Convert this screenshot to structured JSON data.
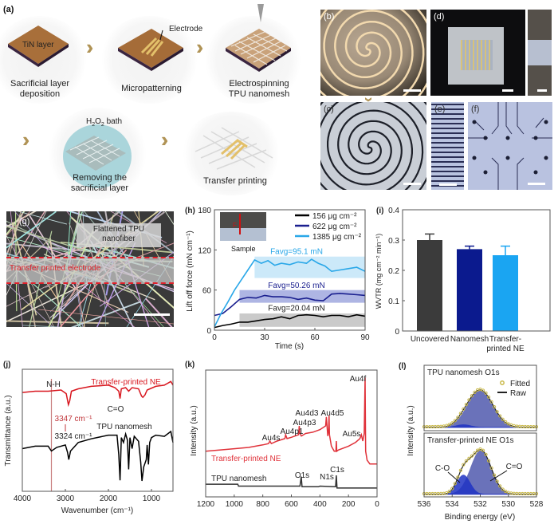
{
  "panel_a": {
    "label": "(a)",
    "steps": [
      {
        "caption_1": "Sacrificial layer",
        "caption_2": "deposition",
        "inner": "TiN layer"
      },
      {
        "caption_1": "Micropatterning",
        "inner": "Electrode"
      },
      {
        "caption_1": "Electrospinning",
        "caption_2": "TPU nanomesh"
      },
      {
        "caption_1": "Removing the",
        "caption_2": "sacrificial layer",
        "inner": "H2O2 bath"
      },
      {
        "caption_1": "Transfer printing"
      }
    ],
    "arrow_icon": "double-chevron-right",
    "colors": {
      "tin": "#a86f3a",
      "gold": "#e3c06a",
      "arrow": "#b09355",
      "bath": "#9ccfd6"
    }
  },
  "photos": {
    "b": "(b)",
    "c": "(c)",
    "d": "(d)",
    "e": "(e)",
    "f": "(f)"
  },
  "panel_g": {
    "label": "(g)",
    "callout": "Flattened TPU nanofiber",
    "callout_1": "Flattened TPU",
    "callout_2": "nanofiber",
    "band_label": "Transfer printed electrode",
    "band_color": "#e0202a"
  },
  "chart_data": [
    {
      "id": "h",
      "label": "(h)",
      "type": "line",
      "xlabel": "Time (s)",
      "ylabel": "Lift off force (mN cm⁻¹)",
      "xlim": [
        0,
        90
      ],
      "ylim": [
        0,
        180
      ],
      "xticks": [
        0,
        30,
        60,
        90
      ],
      "yticks": [
        0,
        60,
        120,
        180
      ],
      "legend_position": "top-right",
      "inset_label": "Sample",
      "inset_force": "F",
      "series": [
        {
          "name": "156 μg cm⁻²",
          "color": "#000000",
          "band": [
            15,
            90,
            5,
            25
          ],
          "annotation": "Favg=20.04 mN",
          "x": [
            0,
            5,
            10,
            15,
            20,
            25,
            30,
            35,
            40,
            45,
            50,
            55,
            60,
            65,
            70,
            75,
            80,
            85,
            90
          ],
          "y": [
            4,
            7,
            9,
            12,
            12,
            14,
            16,
            17,
            20,
            17,
            22,
            23,
            22,
            20,
            22,
            22,
            20,
            23,
            21
          ]
        },
        {
          "name": "622 μg cm⁻²",
          "color": "#1a1f8f",
          "band": [
            15,
            90,
            41,
            60
          ],
          "annotation": "Favg=50.26 mN",
          "x": [
            0,
            5,
            10,
            15,
            20,
            25,
            30,
            35,
            40,
            45,
            50,
            55,
            60,
            65,
            70,
            75,
            80,
            85,
            90
          ],
          "y": [
            22,
            25,
            35,
            46,
            49,
            48,
            52,
            50,
            50,
            49,
            46,
            48,
            45,
            44,
            54,
            55,
            54,
            53,
            52
          ]
        },
        {
          "name": "1385 μg cm⁻²",
          "color": "#29a7e8",
          "band": [
            24,
            90,
            78,
            110
          ],
          "annotation": "Favg=95.1 mN",
          "x": [
            0,
            4,
            8,
            12,
            16,
            20,
            24,
            28,
            32,
            36,
            40,
            45,
            50,
            55,
            58,
            62,
            66,
            70,
            75,
            80,
            85,
            90
          ],
          "y": [
            5,
            25,
            42,
            60,
            75,
            90,
            105,
            100,
            104,
            97,
            100,
            98,
            102,
            100,
            106,
            100,
            96,
            88,
            90,
            92,
            94,
            88
          ]
        }
      ]
    },
    {
      "id": "i",
      "label": "(i)",
      "type": "bar",
      "ylabel": "WVTR (mg cm⁻² min⁻¹)",
      "ylim": [
        0,
        0.4
      ],
      "yticks": [
        0,
        0.1,
        0.2,
        0.3,
        0.4
      ],
      "categories": [
        "Uncovered",
        "Nanomesh",
        "Transfer-printed NE"
      ],
      "category_lines": [
        [
          "Uncovered"
        ],
        [
          "Nanomesh"
        ],
        [
          "Transfer-",
          "printed NE"
        ]
      ],
      "values": [
        0.3,
        0.27,
        0.25
      ],
      "errors": [
        0.02,
        0.01,
        0.03
      ],
      "colors": [
        "#3b3b3b",
        "#0b1a8e",
        "#1aa5f2"
      ]
    },
    {
      "id": "j",
      "label": "(j)",
      "type": "line",
      "xlabel": "Wavenumber (cm⁻¹)",
      "ylabel": "Transmittance (a.u.)",
      "xlim": [
        4000,
        500
      ],
      "ylim": [
        0,
        10
      ],
      "xticks": [
        4000,
        3000,
        2000,
        1000
      ],
      "marker_line_x": 3324,
      "annotations": [
        "N-H",
        "C=O",
        "3347 cm⁻¹",
        "3324 cm⁻¹"
      ],
      "series": [
        {
          "name": "Transfer-printed NE",
          "color": "#d8161e",
          "x": [
            4000,
            3700,
            3400,
            3100,
            2980,
            2930,
            2900,
            2860,
            2700,
            2400,
            2000,
            1850,
            1760,
            1730,
            1700,
            1600,
            1530,
            1450,
            1300,
            1230,
            1200,
            1150,
            1100,
            900,
            700,
            550,
            500
          ],
          "y": [
            8.1,
            8.2,
            8.2,
            8.3,
            8.0,
            7.1,
            7.4,
            8.2,
            8.4,
            8.6,
            8.7,
            8.5,
            8.2,
            7.6,
            8.4,
            8.5,
            8.2,
            8.5,
            8.4,
            7.8,
            7.7,
            7.9,
            8.3,
            8.6,
            8.7,
            9.0,
            8.7
          ]
        },
        {
          "name": "TPU nanomesh",
          "color": "#000000",
          "x": [
            4000,
            3700,
            3400,
            3324,
            3200,
            3000,
            2950,
            2920,
            2880,
            2700,
            2400,
            2000,
            1800,
            1760,
            1730,
            1700,
            1650,
            1600,
            1560,
            1530,
            1500,
            1450,
            1400,
            1300,
            1250,
            1220,
            1180,
            1120,
            1100,
            1070,
            1040,
            1000,
            900,
            700,
            550,
            500
          ],
          "y": [
            3.5,
            3.7,
            3.7,
            3.3,
            3.6,
            3.8,
            3.2,
            2.6,
            3.3,
            4.0,
            4.3,
            4.6,
            4.6,
            3.0,
            0.9,
            4.4,
            4.0,
            4.7,
            4.2,
            1.8,
            4.4,
            3.5,
            4.5,
            4.1,
            2.4,
            0.85,
            2.0,
            2.6,
            3.8,
            2.2,
            4.0,
            4.4,
            4.6,
            4.5,
            4.9,
            4.0
          ]
        }
      ]
    },
    {
      "id": "k",
      "label": "(k)",
      "type": "line",
      "ylabel": "Intensity (a.u.)",
      "xlim": [
        1200,
        0
      ],
      "ylim": [
        0,
        10
      ],
      "xticks": [
        1200,
        1000,
        800,
        600,
        400,
        200,
        0
      ],
      "peak_labels": [
        "Au4s",
        "Au4p1",
        "Au4p3",
        "Au4d3",
        "Au4d5",
        "Au5s",
        "Au4f",
        "O1s",
        "N1s",
        "C1s"
      ],
      "series": [
        {
          "name": "Transfer-printed NE",
          "color": "#e0323a",
          "x": [
            1200,
            1000,
            900,
            800,
            760,
            750,
            740,
            700,
            645,
            640,
            630,
            600,
            550,
            545,
            540,
            530,
            500,
            450,
            400,
            360,
            355,
            345,
            340,
            336,
            333,
            320,
            300,
            288,
            285,
            282,
            270,
            200,
            150,
            120,
            110,
            100,
            90,
            84,
            80,
            70,
            50,
            20,
            0
          ],
          "y": [
            3.6,
            3.8,
            3.9,
            4.1,
            4.2,
            4.4,
            4.2,
            4.4,
            4.6,
            4.9,
            4.6,
            4.7,
            4.9,
            5.6,
            5.0,
            4.8,
            5.0,
            5.1,
            5.3,
            5.6,
            6.3,
            4.8,
            5.2,
            6.4,
            4.9,
            4.0,
            3.6,
            3.6,
            4.4,
            3.6,
            3.7,
            4.0,
            4.3,
            4.6,
            4.9,
            4.4,
            5.0,
            9.4,
            3.6,
            2.9,
            2.6,
            2.6,
            2.6
          ]
        },
        {
          "name": "TPU nanomesh",
          "color": "#333333",
          "x": [
            1200,
            1000,
            975,
            970,
            800,
            600,
            540,
            531,
            525,
            450,
            410,
            400,
            300,
            290,
            285,
            280,
            200,
            0
          ],
          "y": [
            1.0,
            1.0,
            1.0,
            0.85,
            0.85,
            0.85,
            0.85,
            1.6,
            0.8,
            0.8,
            0.8,
            0.85,
            0.8,
            0.8,
            1.7,
            0.7,
            0.7,
            0.7
          ]
        }
      ]
    },
    {
      "id": "l",
      "label": "(l)",
      "type": "line",
      "xlabel": "Binding energy (eV)",
      "ylabel": "Intensity (a.u.)",
      "xlim": [
        536,
        528
      ],
      "xticks": [
        536,
        534,
        532,
        530,
        528
      ],
      "legend": [
        "Fitted",
        "Raw"
      ],
      "legend_position": "top-right",
      "colors": {
        "fitted": "#c9b94a",
        "raw": "#222222",
        "c_eq_o": "#5a63b3",
        "c_o": "#1f33c4"
      },
      "subplots": [
        {
          "title": "TPU nanomesh O1s",
          "ylim": [
            0,
            10
          ],
          "components": [
            {
              "name": "C=O",
              "center": 532.0,
              "fwhm": 2.1,
              "height": 5.7
            },
            {
              "name": "C-O",
              "center": 533.2,
              "fwhm": 1.2,
              "height": 0.4
            }
          ],
          "baseline": 0.5
        },
        {
          "title": "Transfer-printed NE O1s",
          "ylim": [
            0,
            10
          ],
          "components": [
            {
              "name": "C=O",
              "center": 531.95,
              "fwhm": 1.7,
              "height": 6.9
            },
            {
              "name": "C-O",
              "center": 533.2,
              "fwhm": 1.1,
              "height": 3.0
            }
          ],
          "baseline": 0.4,
          "annotations": [
            "C-O",
            "C=O"
          ]
        }
      ]
    }
  ]
}
